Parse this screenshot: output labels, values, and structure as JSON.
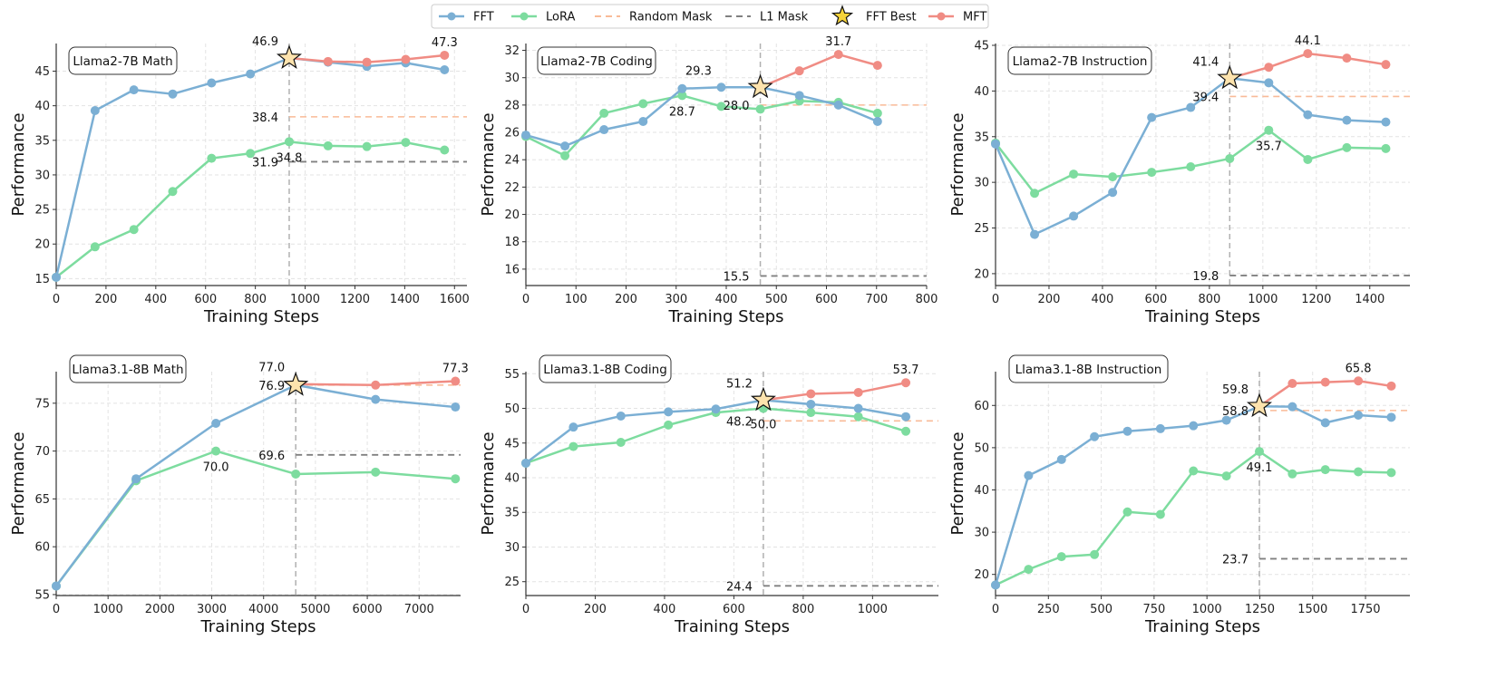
{
  "legend": {
    "items": [
      {
        "label": "FFT",
        "type": "line-marker",
        "color": "#7bafd4"
      },
      {
        "label": "LoRA",
        "type": "line-marker",
        "color": "#7ddc9f"
      },
      {
        "label": "Random Mask",
        "type": "dashed",
        "color": "#f9bb98"
      },
      {
        "label": "L1 Mask",
        "type": "dashed",
        "color": "#808080"
      },
      {
        "label": "FFT Best",
        "type": "star",
        "color": "#f5d33a"
      },
      {
        "label": "MFT",
        "type": "line-marker",
        "color": "#f08c84"
      }
    ]
  },
  "colors": {
    "fft": "#7bafd4",
    "lora": "#7ddc9f",
    "mft": "#f08c84",
    "random_mask": "#f9bb98",
    "l1_mask": "#808080",
    "star_fill": "#fde3ad",
    "vline": "#b0b0b0"
  },
  "chart_data": [
    {
      "type": "line",
      "title": "Llama2-7B Math",
      "xlabel": "Training Steps",
      "ylabel": "Performance",
      "xlim": [
        0,
        1650
      ],
      "ylim": [
        14,
        49
      ],
      "xticks": [
        0,
        200,
        400,
        600,
        800,
        1000,
        1200,
        1400,
        1600
      ],
      "yticks": [
        15,
        20,
        25,
        30,
        35,
        40,
        45
      ],
      "grid": true,
      "series": [
        {
          "name": "FFT",
          "x": [
            0,
            156,
            312,
            468,
            624,
            780,
            936,
            1092,
            1248,
            1404,
            1560
          ],
          "y": [
            15.2,
            39.3,
            42.3,
            41.7,
            43.3,
            44.6,
            46.9,
            46.3,
            45.7,
            46.2,
            45.2
          ]
        },
        {
          "name": "LoRA",
          "x": [
            0,
            156,
            312,
            468,
            624,
            780,
            936,
            1092,
            1248,
            1404,
            1560
          ],
          "y": [
            15.2,
            19.6,
            22.1,
            27.6,
            32.4,
            33.1,
            34.8,
            34.2,
            34.1,
            34.7,
            33.6
          ]
        },
        {
          "name": "MFT",
          "x": [
            936,
            1092,
            1248,
            1404,
            1560
          ],
          "y": [
            46.9,
            46.4,
            46.3,
            46.7,
            47.3
          ]
        }
      ],
      "best_step": 936,
      "best_value": 46.9,
      "random_mask": 38.4,
      "l1_mask": 31.9,
      "annotations": [
        {
          "text": "46.9",
          "x": 936,
          "y": 46.9,
          "pos": "above-left"
        },
        {
          "text": "47.3",
          "x": 1560,
          "y": 47.3,
          "pos": "above"
        },
        {
          "text": "38.4",
          "x": 936,
          "y": 38.4,
          "pos": "left"
        },
        {
          "text": "31.9",
          "x": 936,
          "y": 31.9,
          "pos": "left"
        },
        {
          "text": "34.8",
          "x": 936,
          "y": 34.8,
          "pos": "below"
        }
      ]
    },
    {
      "type": "line",
      "title": "Llama2-7B Coding",
      "xlabel": "Training Steps",
      "ylabel": "Performance",
      "xlim": [
        0,
        800
      ],
      "ylim": [
        14.8,
        32.5
      ],
      "xticks": [
        0,
        100,
        200,
        300,
        400,
        500,
        600,
        700,
        800
      ],
      "yticks": [
        16,
        18,
        20,
        22,
        24,
        26,
        28,
        30,
        32
      ],
      "grid": true,
      "series": [
        {
          "name": "FFT",
          "x": [
            0,
            78,
            156,
            234,
            312,
            390,
            468,
            546,
            624,
            702
          ],
          "y": [
            25.8,
            25.0,
            26.2,
            26.8,
            29.2,
            29.3,
            29.3,
            28.7,
            28.0,
            26.8
          ]
        },
        {
          "name": "LoRA",
          "x": [
            0,
            78,
            156,
            234,
            312,
            390,
            468,
            546,
            624,
            702
          ],
          "y": [
            25.7,
            24.3,
            27.4,
            28.1,
            28.7,
            27.9,
            27.7,
            28.3,
            28.2,
            27.4
          ]
        },
        {
          "name": "MFT",
          "x": [
            468,
            546,
            624,
            702
          ],
          "y": [
            29.3,
            30.5,
            31.7,
            30.9
          ]
        }
      ],
      "best_step": 468,
      "best_value": 29.3,
      "random_mask": 28.0,
      "l1_mask": 15.5,
      "annotations": [
        {
          "text": "29.3",
          "x": 312,
          "y": 29.3,
          "pos": "above-right"
        },
        {
          "text": "28.7",
          "x": 312,
          "y": 28.7,
          "pos": "below"
        },
        {
          "text": "28.0",
          "x": 468,
          "y": 28.0,
          "pos": "left"
        },
        {
          "text": "31.7",
          "x": 624,
          "y": 31.7,
          "pos": "above"
        },
        {
          "text": "15.5",
          "x": 468,
          "y": 15.5,
          "pos": "left"
        }
      ]
    },
    {
      "type": "line",
      "title": "Llama2-7B Instruction",
      "xlabel": "Training Steps",
      "ylabel": "Performance",
      "xlim": [
        0,
        1550
      ],
      "ylim": [
        18.7,
        45.2
      ],
      "xticks": [
        0,
        200,
        400,
        600,
        800,
        1000,
        1200,
        1400
      ],
      "yticks": [
        20,
        25,
        30,
        35,
        40,
        45
      ],
      "grid": true,
      "series": [
        {
          "name": "FFT",
          "x": [
            0,
            146,
            292,
            438,
            584,
            730,
            876,
            1022,
            1168,
            1314,
            1460
          ],
          "y": [
            34.2,
            24.3,
            26.3,
            28.9,
            37.1,
            38.2,
            41.4,
            40.9,
            37.4,
            36.8,
            36.6
          ]
        },
        {
          "name": "LoRA",
          "x": [
            0,
            146,
            292,
            438,
            584,
            730,
            876,
            1022,
            1168,
            1314,
            1460
          ],
          "y": [
            34.3,
            28.8,
            30.9,
            30.6,
            31.1,
            31.7,
            32.6,
            35.7,
            32.5,
            33.8,
            33.7
          ]
        },
        {
          "name": "MFT",
          "x": [
            876,
            1022,
            1168,
            1314,
            1460
          ],
          "y": [
            41.4,
            42.6,
            44.1,
            43.6,
            42.9
          ]
        }
      ],
      "best_step": 876,
      "best_value": 41.4,
      "random_mask": 39.4,
      "l1_mask": 19.8,
      "annotations": [
        {
          "text": "41.4",
          "x": 876,
          "y": 41.4,
          "pos": "above-left"
        },
        {
          "text": "39.4",
          "x": 876,
          "y": 39.4,
          "pos": "left"
        },
        {
          "text": "44.1",
          "x": 1168,
          "y": 44.1,
          "pos": "above"
        },
        {
          "text": "35.7",
          "x": 1022,
          "y": 35.7,
          "pos": "below"
        },
        {
          "text": "19.8",
          "x": 876,
          "y": 19.8,
          "pos": "left"
        }
      ]
    },
    {
      "type": "line",
      "title": "Llama3.1-8B Math",
      "xlabel": "Training Steps",
      "ylabel": "Performance",
      "xlim": [
        0,
        7800
      ],
      "ylim": [
        54.9,
        78.3
      ],
      "xticks": [
        0,
        1000,
        2000,
        3000,
        4000,
        5000,
        6000,
        7000
      ],
      "yticks": [
        55,
        60,
        65,
        70,
        75
      ],
      "grid": true,
      "series": [
        {
          "name": "FFT",
          "x": [
            0,
            1540,
            3080,
            4620,
            6160,
            7700
          ],
          "y": [
            55.9,
            67.1,
            72.9,
            76.9,
            75.4,
            74.6
          ]
        },
        {
          "name": "LoRA",
          "x": [
            0,
            1540,
            3080,
            4620,
            6160,
            7700
          ],
          "y": [
            55.9,
            66.9,
            70.0,
            67.6,
            67.8,
            67.1
          ]
        },
        {
          "name": "MFT",
          "x": [
            4620,
            6160,
            7700
          ],
          "y": [
            77.0,
            76.9,
            77.3
          ]
        }
      ],
      "best_step": 4620,
      "best_value": 76.9,
      "random_mask": 76.9,
      "l1_mask": 69.6,
      "annotations": [
        {
          "text": "77.0",
          "x": 4620,
          "y": 77.0,
          "pos": "above-left"
        },
        {
          "text": "76.9",
          "x": 4620,
          "y": 76.9,
          "pos": "left"
        },
        {
          "text": "77.3",
          "x": 7700,
          "y": 77.3,
          "pos": "above"
        },
        {
          "text": "70.0",
          "x": 3080,
          "y": 70.0,
          "pos": "below"
        },
        {
          "text": "69.6",
          "x": 4620,
          "y": 69.6,
          "pos": "left"
        }
      ]
    },
    {
      "type": "line",
      "title": "Llama3.1-8B Coding",
      "xlabel": "Training Steps",
      "ylabel": "Performance",
      "xlim": [
        0,
        1190
      ],
      "ylim": [
        23.0,
        55.3
      ],
      "xticks": [
        0,
        200,
        400,
        600,
        800,
        1000
      ],
      "yticks": [
        25,
        30,
        35,
        40,
        45,
        50,
        55
      ],
      "grid": true,
      "series": [
        {
          "name": "FFT",
          "x": [
            0,
            137,
            274,
            411,
            548,
            685,
            822,
            959,
            1096
          ],
          "y": [
            42.1,
            47.3,
            48.9,
            49.5,
            49.9,
            51.2,
            50.6,
            50.0,
            48.8
          ]
        },
        {
          "name": "LoRA",
          "x": [
            0,
            137,
            274,
            411,
            548,
            685,
            822,
            959,
            1096
          ],
          "y": [
            42.1,
            44.5,
            45.1,
            47.6,
            49.4,
            50.0,
            49.4,
            48.8,
            46.7
          ]
        },
        {
          "name": "MFT",
          "x": [
            685,
            822,
            959,
            1096
          ],
          "y": [
            51.2,
            52.1,
            52.3,
            53.7
          ]
        }
      ],
      "best_step": 685,
      "best_value": 51.2,
      "random_mask": 48.2,
      "l1_mask": 24.4,
      "annotations": [
        {
          "text": "51.2",
          "x": 685,
          "y": 51.2,
          "pos": "above-left"
        },
        {
          "text": "48.2",
          "x": 685,
          "y": 48.2,
          "pos": "left"
        },
        {
          "text": "50.0",
          "x": 685,
          "y": 50.0,
          "pos": "below"
        },
        {
          "text": "53.7",
          "x": 1096,
          "y": 53.7,
          "pos": "above"
        },
        {
          "text": "24.4",
          "x": 685,
          "y": 24.4,
          "pos": "left"
        }
      ]
    },
    {
      "type": "line",
      "title": "Llama3.1-8B Instruction",
      "xlabel": "Training Steps",
      "ylabel": "Performance",
      "xlim": [
        0,
        1960
      ],
      "ylim": [
        15,
        68
      ],
      "xticks": [
        0,
        250,
        500,
        750,
        1000,
        1250,
        1500,
        1750
      ],
      "yticks": [
        20,
        30,
        40,
        50,
        60
      ],
      "grid": true,
      "series": [
        {
          "name": "FFT",
          "x": [
            0,
            156,
            312,
            468,
            624,
            780,
            936,
            1092,
            1248,
            1404,
            1560,
            1716,
            1872
          ],
          "y": [
            17.5,
            43.4,
            47.2,
            52.6,
            53.9,
            54.5,
            55.2,
            56.5,
            59.8,
            59.7,
            55.9,
            57.7,
            57.2
          ]
        },
        {
          "name": "LoRA",
          "x": [
            0,
            156,
            312,
            468,
            624,
            780,
            936,
            1092,
            1248,
            1404,
            1560,
            1716,
            1872
          ],
          "y": [
            17.5,
            21.2,
            24.2,
            24.7,
            34.8,
            34.2,
            44.5,
            43.3,
            49.1,
            43.8,
            44.8,
            44.3,
            44.1
          ]
        },
        {
          "name": "MFT",
          "x": [
            1248,
            1404,
            1560,
            1716,
            1872
          ],
          "y": [
            59.8,
            65.2,
            65.5,
            65.8,
            64.6
          ]
        }
      ],
      "best_step": 1248,
      "best_value": 59.8,
      "random_mask": 58.8,
      "l1_mask": 23.7,
      "annotations": [
        {
          "text": "59.8",
          "x": 1248,
          "y": 59.8,
          "pos": "above-left"
        },
        {
          "text": "58.8",
          "x": 1248,
          "y": 58.8,
          "pos": "left"
        },
        {
          "text": "65.8",
          "x": 1716,
          "y": 65.8,
          "pos": "above"
        },
        {
          "text": "49.1",
          "x": 1248,
          "y": 49.1,
          "pos": "below"
        },
        {
          "text": "23.7",
          "x": 1248,
          "y": 23.7,
          "pos": "left"
        }
      ]
    }
  ]
}
